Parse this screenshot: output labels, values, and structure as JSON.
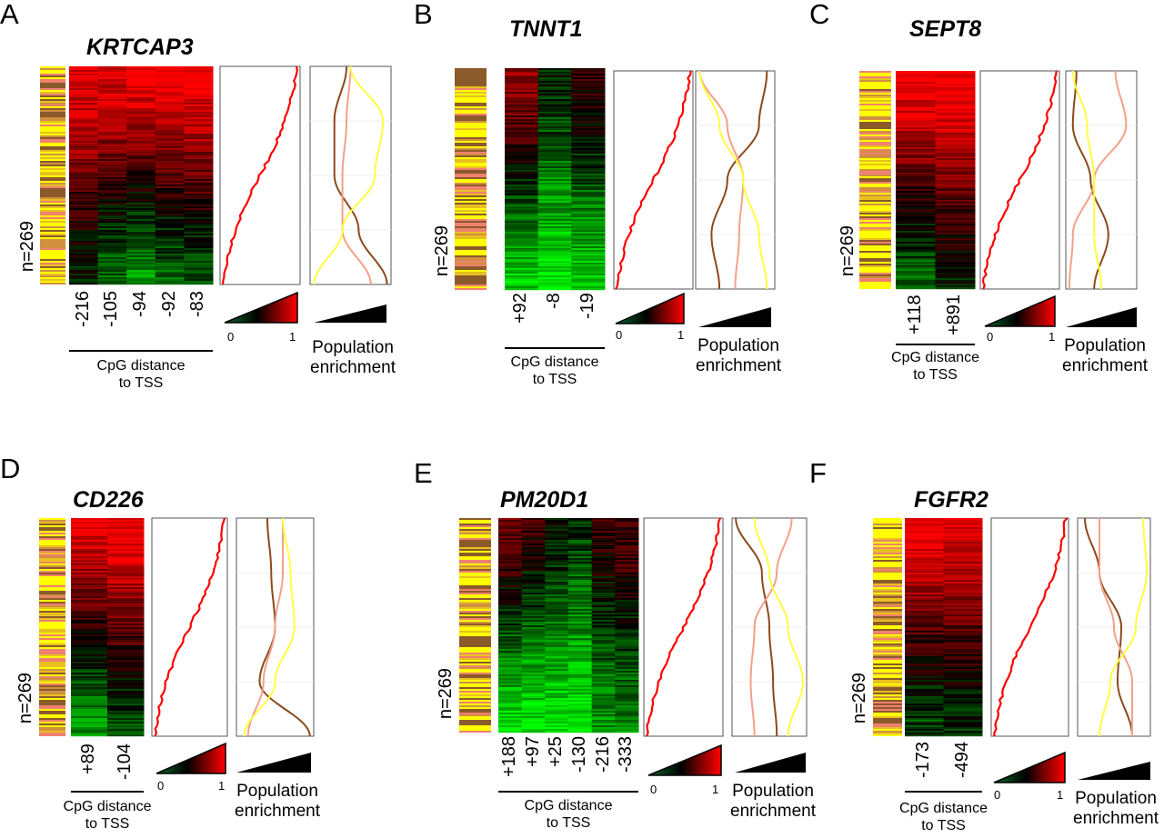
{
  "chart_data": [
    {
      "type": "heatmap",
      "panel": "A",
      "gene": "KRTCAP3",
      "n_label": "n=269",
      "columns": [
        "-216",
        "-105",
        "-94",
        "-92",
        "-83"
      ],
      "column_methylation_top_bottom": [
        [
          0.95,
          0.45
        ],
        [
          0.95,
          0.3
        ],
        [
          1,
          0.2
        ],
        [
          1,
          0.3
        ],
        [
          1,
          0.35
        ]
      ],
      "xlabel": [
        "CpG distance",
        "to TSS"
      ],
      "colorbar": {
        "min": "0",
        "max": "1",
        "low_color": "#00ff00",
        "mid_color": "#000000",
        "high_color": "#ff0000"
      },
      "enrichment_label": [
        "Population",
        "enrichment"
      ]
    },
    {
      "type": "heatmap",
      "panel": "B",
      "gene": "TNNT1",
      "n_label": "n=269",
      "columns": [
        "+92",
        "-8",
        "-19"
      ],
      "column_methylation_top_bottom": [
        [
          0.8,
          0.1
        ],
        [
          0.45,
          0.05
        ],
        [
          0.6,
          0.1
        ]
      ],
      "xlabel": [
        "CpG distance",
        "to TSS"
      ],
      "colorbar": {
        "min": "0",
        "max": "1"
      },
      "enrichment_label": [
        "Population",
        "enrichment"
      ]
    },
    {
      "type": "heatmap",
      "panel": "C",
      "gene": "SEPT8",
      "n_label": "n=269",
      "columns": [
        "+118",
        "+891"
      ],
      "column_methylation_top_bottom": [
        [
          1,
          0.3
        ],
        [
          1,
          0.45
        ]
      ],
      "xlabel": [
        "CpG distance",
        "to TSS"
      ],
      "colorbar": {
        "min": "0",
        "max": "1"
      },
      "enrichment_label": [
        "Population",
        "enrichment"
      ]
    },
    {
      "type": "heatmap",
      "panel": "D",
      "gene": "CD226",
      "n_label": "n=269",
      "columns": [
        "+89",
        "-104"
      ],
      "column_methylation_top_bottom": [
        [
          0.95,
          0.2
        ],
        [
          1,
          0.35
        ]
      ],
      "xlabel": [
        "CpG distance",
        "to TSS"
      ],
      "colorbar": {
        "min": "0",
        "max": "1"
      },
      "enrichment_label": [
        "Population",
        "enrichment"
      ]
    },
    {
      "type": "heatmap",
      "panel": "E",
      "gene": "PM20D1",
      "n_label": "n=269",
      "columns": [
        "+188",
        "+97",
        "+25",
        "-130",
        "-216",
        "-333"
      ],
      "column_methylation_top_bottom": [
        [
          0.7,
          0.05
        ],
        [
          0.6,
          0.05
        ],
        [
          0.5,
          0.05
        ],
        [
          0.4,
          0.05
        ],
        [
          0.6,
          0.2
        ],
        [
          0.65,
          0.25
        ]
      ],
      "xlabel": [
        "CpG distance",
        "to TSS"
      ],
      "colorbar": {
        "min": "0",
        "max": "1"
      },
      "enrichment_label": [
        "Population",
        "enrichment"
      ]
    },
    {
      "type": "heatmap",
      "panel": "F",
      "gene": "FGFR2",
      "n_label": "n=269",
      "columns": [
        "-173",
        "-494"
      ],
      "column_methylation_top_bottom": [
        [
          1,
          0.35
        ],
        [
          0.95,
          0.4
        ]
      ],
      "xlabel": [
        "CpG distance",
        "to TSS"
      ],
      "colorbar": {
        "min": "0",
        "max": "1"
      },
      "enrichment_label": [
        "Population",
        "enrichment"
      ]
    }
  ],
  "colors": {
    "cumulative_line": "#ff0000",
    "population_1": "#8b4a1c",
    "population_2": "#f4a08a",
    "population_3": "#ffff40",
    "strip": [
      "#ffff00",
      "#e8c020",
      "#8b5a2b",
      "#f08070",
      "#d09040"
    ]
  }
}
